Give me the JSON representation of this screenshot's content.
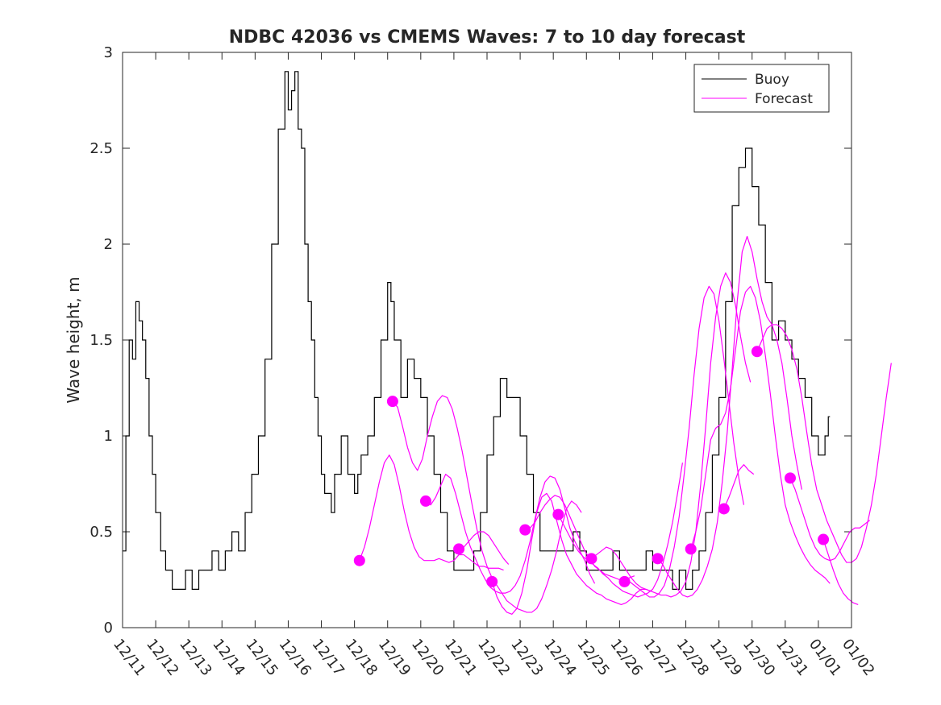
{
  "chart_data": {
    "type": "line",
    "title": "NDBC 42036 vs CMEMS Waves: 7 to 10 day forecast",
    "xlabel": "",
    "ylabel": "Wave height, m",
    "xlim": [
      0,
      22
    ],
    "ylim": [
      0,
      3
    ],
    "x_tick_labels": [
      "12/11",
      "12/12",
      "12/13",
      "12/14",
      "12/15",
      "12/16",
      "12/17",
      "12/18",
      "12/19",
      "12/20",
      "12/21",
      "12/22",
      "12/23",
      "12/24",
      "12/25",
      "12/26",
      "12/27",
      "12/28",
      "12/29",
      "12/30",
      "12/31",
      "01/01",
      "01/02"
    ],
    "y_ticks": [
      0,
      0.5,
      1,
      1.5,
      2,
      2.5,
      3
    ],
    "y_tick_labels": [
      "0",
      "0.5",
      "1",
      "1.5",
      "2",
      "2.5",
      "3"
    ],
    "x_unit": "days since 12/11 00:00",
    "colors": {
      "buoy": "#000000",
      "forecast": "#ff00ff"
    },
    "legend": {
      "position": "top-right",
      "entries": [
        "Buoy",
        "Forecast"
      ]
    },
    "series": [
      {
        "name": "Buoy",
        "style": "step",
        "x": [
          0,
          0.1,
          0.2,
          0.3,
          0.4,
          0.5,
          0.6,
          0.7,
          0.8,
          0.9,
          1.0,
          1.15,
          1.3,
          1.5,
          1.7,
          1.9,
          2.1,
          2.3,
          2.5,
          2.7,
          2.9,
          3.1,
          3.3,
          3.5,
          3.7,
          3.9,
          4.1,
          4.3,
          4.5,
          4.7,
          4.9,
          5.0,
          5.1,
          5.2,
          5.3,
          5.4,
          5.5,
          5.6,
          5.7,
          5.8,
          5.9,
          6.0,
          6.1,
          6.2,
          6.3,
          6.4,
          6.6,
          6.8,
          7.0,
          7.1,
          7.2,
          7.4,
          7.6,
          7.8,
          8.0,
          8.1,
          8.2,
          8.4,
          8.6,
          8.8,
          9.0,
          9.2,
          9.4,
          9.6,
          9.8,
          10.0,
          10.2,
          10.4,
          10.6,
          10.8,
          11.0,
          11.2,
          11.4,
          11.6,
          11.8,
          12.0,
          12.2,
          12.4,
          12.6,
          12.8,
          13.0,
          13.2,
          13.4,
          13.6,
          13.8,
          14.0,
          14.2,
          14.4,
          14.6,
          14.8,
          15.0,
          15.2,
          15.4,
          15.6,
          15.8,
          16.0,
          16.2,
          16.4,
          16.6,
          16.8,
          17.0,
          17.2,
          17.4,
          17.6,
          17.8,
          18.0,
          18.2,
          18.4,
          18.6,
          18.8,
          19.0,
          19.2,
          19.4,
          19.6,
          19.8,
          20.0,
          20.2,
          20.4,
          20.6,
          20.8,
          21.0,
          21.2,
          21.3
        ],
        "values": [
          0.4,
          1.0,
          1.5,
          1.4,
          1.7,
          1.6,
          1.5,
          1.3,
          1.0,
          0.8,
          0.6,
          0.4,
          0.3,
          0.2,
          0.2,
          0.3,
          0.2,
          0.3,
          0.3,
          0.4,
          0.3,
          0.4,
          0.5,
          0.4,
          0.6,
          0.8,
          1.0,
          1.4,
          2.0,
          2.6,
          2.9,
          2.7,
          2.8,
          2.9,
          2.6,
          2.5,
          2.0,
          1.7,
          1.5,
          1.2,
          1.0,
          0.8,
          0.7,
          0.7,
          0.6,
          0.8,
          1.0,
          0.8,
          0.7,
          0.8,
          0.9,
          1.0,
          1.2,
          1.5,
          1.8,
          1.7,
          1.5,
          1.2,
          1.4,
          1.3,
          1.2,
          1.0,
          0.8,
          0.6,
          0.4,
          0.3,
          0.3,
          0.3,
          0.4,
          0.6,
          0.9,
          1.1,
          1.3,
          1.2,
          1.2,
          1.0,
          0.8,
          0.6,
          0.4,
          0.4,
          0.4,
          0.4,
          0.4,
          0.5,
          0.4,
          0.3,
          0.3,
          0.3,
          0.3,
          0.4,
          0.3,
          0.3,
          0.3,
          0.3,
          0.4,
          0.3,
          0.3,
          0.3,
          0.2,
          0.3,
          0.2,
          0.3,
          0.4,
          0.6,
          0.9,
          1.2,
          1.7,
          2.2,
          2.4,
          2.5,
          2.3,
          2.1,
          1.8,
          1.5,
          1.6,
          1.5,
          1.4,
          1.3,
          1.2,
          1.0,
          0.9,
          1.0,
          1.1
        ]
      },
      {
        "name": "Forecast",
        "style": "multi-line",
        "runs": [
          {
            "start": 7.15,
            "step": 0.15,
            "values": [
              0.35,
              0.42,
              0.52,
              0.64,
              0.76,
              0.86,
              0.9,
              0.85,
              0.74,
              0.61,
              0.5,
              0.42,
              0.37,
              0.35,
              0.35,
              0.35,
              0.36,
              0.35,
              0.34,
              0.35,
              0.38,
              0.38,
              0.36,
              0.34,
              0.32,
              0.32,
              0.31,
              0.31,
              0.31,
              0.3
            ]
          },
          {
            "start": 8.15,
            "step": 0.15,
            "values": [
              1.18,
              1.15,
              1.05,
              0.94,
              0.86,
              0.82,
              0.88,
              1.0,
              1.1,
              1.18,
              1.21,
              1.2,
              1.14,
              1.04,
              0.92,
              0.78,
              0.64,
              0.51,
              0.4,
              0.32,
              0.26,
              0.22,
              0.18,
              0.14,
              0.12,
              0.1,
              0.09,
              0.08,
              0.08,
              0.1,
              0.15,
              0.22,
              0.3,
              0.4,
              0.52,
              0.62,
              0.66,
              0.64,
              0.6
            ]
          },
          {
            "start": 9.15,
            "step": 0.15,
            "values": [
              0.66,
              0.64,
              0.68,
              0.74,
              0.8,
              0.78,
              0.7,
              0.6,
              0.5,
              0.42,
              0.36,
              0.3,
              0.25,
              0.21,
              0.19,
              0.18,
              0.18,
              0.19,
              0.22,
              0.27,
              0.35,
              0.45,
              0.57,
              0.68,
              0.76,
              0.79,
              0.78,
              0.72,
              0.62,
              0.52,
              0.45,
              0.4,
              0.35,
              0.28,
              0.23
            ]
          },
          {
            "start": 10.15,
            "step": 0.15,
            "values": [
              0.41,
              0.42,
              0.45,
              0.48,
              0.5,
              0.5,
              0.48,
              0.44,
              0.4,
              0.36,
              0.33
            ]
          },
          {
            "start": 11.15,
            "step": 0.15,
            "values": [
              0.24,
              0.16,
              0.11,
              0.08,
              0.07,
              0.1,
              0.18,
              0.3,
              0.46,
              0.6,
              0.68,
              0.7,
              0.66,
              0.56,
              0.46,
              0.38,
              0.33,
              0.28,
              0.25,
              0.22,
              0.2,
              0.18,
              0.17,
              0.15,
              0.14,
              0.13,
              0.12,
              0.13,
              0.15,
              0.18,
              0.2,
              0.2,
              0.19
            ]
          },
          {
            "start": 12.15,
            "step": 0.15,
            "values": [
              0.51,
              0.52,
              0.55,
              0.6,
              0.64,
              0.67,
              0.69,
              0.68,
              0.64,
              0.58,
              0.52,
              0.46,
              0.4,
              0.36,
              0.32,
              0.3,
              0.28,
              0.27,
              0.26,
              0.25,
              0.25,
              0.26,
              0.27
            ]
          },
          {
            "start": 13.15,
            "step": 0.15,
            "values": [
              0.59,
              0.54,
              0.49,
              0.44,
              0.4,
              0.37,
              0.35,
              0.33,
              0.31,
              0.28,
              0.26,
              0.23,
              0.21,
              0.19,
              0.18,
              0.17,
              0.16,
              0.17,
              0.18,
              0.2,
              0.25,
              0.33,
              0.43,
              0.55,
              0.7,
              0.86
            ]
          },
          {
            "start": 14.15,
            "step": 0.15,
            "values": [
              0.36,
              0.38,
              0.4,
              0.42,
              0.41,
              0.38,
              0.34,
              0.3,
              0.26,
              0.23,
              0.21,
              0.2,
              0.19,
              0.18,
              0.17,
              0.17,
              0.16,
              0.17,
              0.19,
              0.24,
              0.34,
              0.5,
              0.75,
              1.05,
              1.38,
              1.62,
              1.78,
              1.85,
              1.8,
              1.68,
              1.52,
              1.38,
              1.28
            ]
          },
          {
            "start": 15.15,
            "step": 0.15,
            "values": [
              0.24,
              0.24,
              0.22,
              0.2,
              0.18,
              0.16,
              0.16,
              0.18,
              0.22,
              0.3,
              0.42,
              0.58,
              0.8,
              1.04,
              1.32,
              1.56,
              1.72,
              1.78,
              1.74,
              1.6,
              1.4,
              1.18,
              0.96,
              0.78,
              0.64
            ]
          },
          {
            "start": 16.15,
            "step": 0.15,
            "values": [
              0.36,
              0.33,
              0.28,
              0.24,
              0.2,
              0.17,
              0.16,
              0.17,
              0.2,
              0.25,
              0.32,
              0.41,
              0.55,
              0.76,
              1.02,
              1.35,
              1.7,
              1.96,
              2.04,
              1.96,
              1.82,
              1.7,
              1.62,
              1.58,
              1.5,
              1.38,
              1.2,
              1.0,
              0.85,
              0.72
            ]
          },
          {
            "start": 17.15,
            "step": 0.15,
            "values": [
              0.41,
              0.5,
              0.62,
              0.8,
              0.98,
              1.04,
              1.06,
              1.12,
              1.25,
              1.45,
              1.65,
              1.75,
              1.78,
              1.72,
              1.6,
              1.42,
              1.22,
              1.0,
              0.8,
              0.64,
              0.55,
              0.48,
              0.42,
              0.37,
              0.33,
              0.3,
              0.28,
              0.26,
              0.23
            ]
          },
          {
            "start": 18.15,
            "step": 0.15,
            "values": [
              0.62,
              0.68,
              0.75,
              0.82,
              0.85,
              0.82,
              0.8
            ]
          },
          {
            "start": 19.15,
            "step": 0.15,
            "values": [
              1.44,
              1.5,
              1.56,
              1.58,
              1.58,
              1.56,
              1.52,
              1.45,
              1.35,
              1.2,
              1.02,
              0.85,
              0.72,
              0.64,
              0.56,
              0.5,
              0.44,
              0.38,
              0.34,
              0.34,
              0.36,
              0.42,
              0.52,
              0.64,
              0.8,
              1.0,
              1.2,
              1.38
            ]
          },
          {
            "start": 20.15,
            "step": 0.15,
            "values": [
              0.78,
              0.72,
              0.64,
              0.56,
              0.48,
              0.42,
              0.38,
              0.36,
              0.35,
              0.36,
              0.4,
              0.45,
              0.5,
              0.52,
              0.52,
              0.54,
              0.56
            ]
          },
          {
            "start": 21.15,
            "step": 0.15,
            "values": [
              0.46,
              0.38,
              0.3,
              0.23,
              0.18,
              0.15,
              0.13,
              0.12
            ]
          }
        ]
      }
    ],
    "markers": {
      "name": "Forecast start points",
      "x": [
        7.15,
        8.15,
        9.15,
        10.15,
        11.15,
        12.15,
        13.15,
        14.15,
        15.15,
        16.15,
        17.15,
        18.15,
        19.15,
        20.15,
        21.15
      ],
      "values": [
        0.35,
        1.18,
        0.66,
        0.41,
        0.24,
        0.51,
        0.59,
        0.36,
        0.24,
        0.36,
        0.41,
        0.62,
        1.44,
        0.78,
        0.46
      ]
    }
  }
}
